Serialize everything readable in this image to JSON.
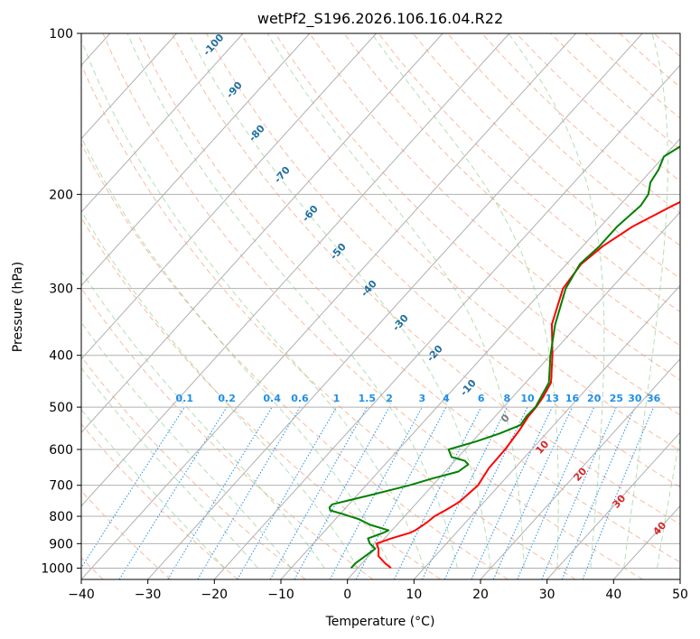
{
  "chart_data": {
    "type": "skew-t",
    "title": "wetPf2_S196.2026.106.16.04.R22",
    "xlabel": "Temperature (°C)",
    "ylabel": "Pressure (hPa)",
    "xlim": [
      -40,
      50
    ],
    "ylim": [
      1050,
      100
    ],
    "x_ticks": [
      "−40",
      "−30",
      "−20",
      "−10",
      "0",
      "10",
      "20",
      "30",
      "40",
      "50"
    ],
    "x_tick_values": [
      -40,
      -30,
      -20,
      -10,
      0,
      10,
      20,
      30,
      40,
      50
    ],
    "y_ticks": [
      "100",
      "200",
      "300",
      "400",
      "500",
      "600",
      "700",
      "800",
      "900",
      "1000"
    ],
    "y_tick_values": [
      100,
      200,
      300,
      400,
      500,
      600,
      700,
      800,
      900,
      1000
    ],
    "colors": {
      "temperature": "#ff0000",
      "dewpoint": "#008000",
      "mixing_ratio": "#1f8fe8",
      "dry_adiabat_label": "#1f6fa0",
      "moist_adiabat_label": "#d62728",
      "grid": "#b0b0b0"
    },
    "series": [
      {
        "name": "Temperature",
        "pressure": [
          1000,
          980,
          950,
          920,
          900,
          880,
          860,
          850,
          830,
          820,
          800,
          780,
          760,
          750,
          700,
          650,
          600,
          550,
          520,
          500,
          480,
          450,
          400,
          350,
          300,
          270,
          250,
          230,
          210,
          200,
          190,
          180,
          170,
          160,
          150,
          140,
          130,
          120,
          110,
          100
        ],
        "values": [
          5,
          3.5,
          1.5,
          0.5,
          -0.5,
          1,
          3,
          3.5,
          4,
          4.2,
          4.5,
          5.3,
          6,
          6.3,
          6.8,
          6.1,
          6,
          5.5,
          5,
          4.9,
          4.6,
          3.8,
          0.3,
          -4,
          -7.2,
          -7.8,
          -7,
          -5.2,
          -2,
          0,
          3.5,
          7,
          10.5,
          13,
          15.5,
          17.3,
          18.8,
          20.4,
          21.8,
          23.5
        ]
      },
      {
        "name": "Dewpoint",
        "pressure": [
          1000,
          980,
          950,
          920,
          900,
          880,
          860,
          850,
          830,
          810,
          790,
          780,
          770,
          760,
          750,
          730,
          710,
          700,
          680,
          660,
          640,
          630,
          620,
          600,
          580,
          560,
          540,
          520,
          500,
          450,
          400,
          350,
          300,
          270,
          250,
          230,
          210,
          200,
          190,
          180,
          170,
          160,
          150,
          140,
          130,
          120,
          110,
          100
        ],
        "values": [
          -1,
          -1,
          -0.5,
          0,
          -1.5,
          -2.5,
          -1,
          -0.5,
          -4,
          -6.5,
          -10,
          -12,
          -12.5,
          -12.5,
          -11,
          -8,
          -5,
          -3.5,
          -1,
          2,
          2.5,
          1.5,
          -1,
          -2.5,
          0.5,
          3,
          5,
          4.7,
          4.8,
          3.5,
          0,
          -3.5,
          -6.8,
          -8,
          -7.5,
          -7.5,
          -6.8,
          -7.2,
          -8.5,
          -9,
          -10,
          -8.5,
          -6,
          -4.5,
          -3.5,
          -1.8,
          0,
          1.3
        ]
      }
    ],
    "mixing_ratio_labels": [
      "0.1",
      "0.2",
      "0.4",
      "0.6",
      "1",
      "1.5",
      "2",
      "3",
      "4",
      "6",
      "8",
      "10",
      "13",
      "16",
      "20",
      "25",
      "30",
      "36"
    ],
    "mixing_ratio_values": [
      0.1,
      0.2,
      0.4,
      0.6,
      1,
      1.5,
      2,
      3,
      4,
      6,
      8,
      10,
      13,
      16,
      20,
      25,
      30,
      36
    ],
    "dry_adiabat_labels": [
      "-100",
      "-90",
      "-80",
      "-70",
      "-60",
      "-50",
      "-40",
      "-30",
      "-20",
      "-10"
    ],
    "moist_adiabat_labels": [
      "0",
      "10",
      "20",
      "30",
      "40"
    ],
    "moist_adiabat_values": [
      0,
      10,
      20,
      30,
      40
    ],
    "grid": true
  }
}
